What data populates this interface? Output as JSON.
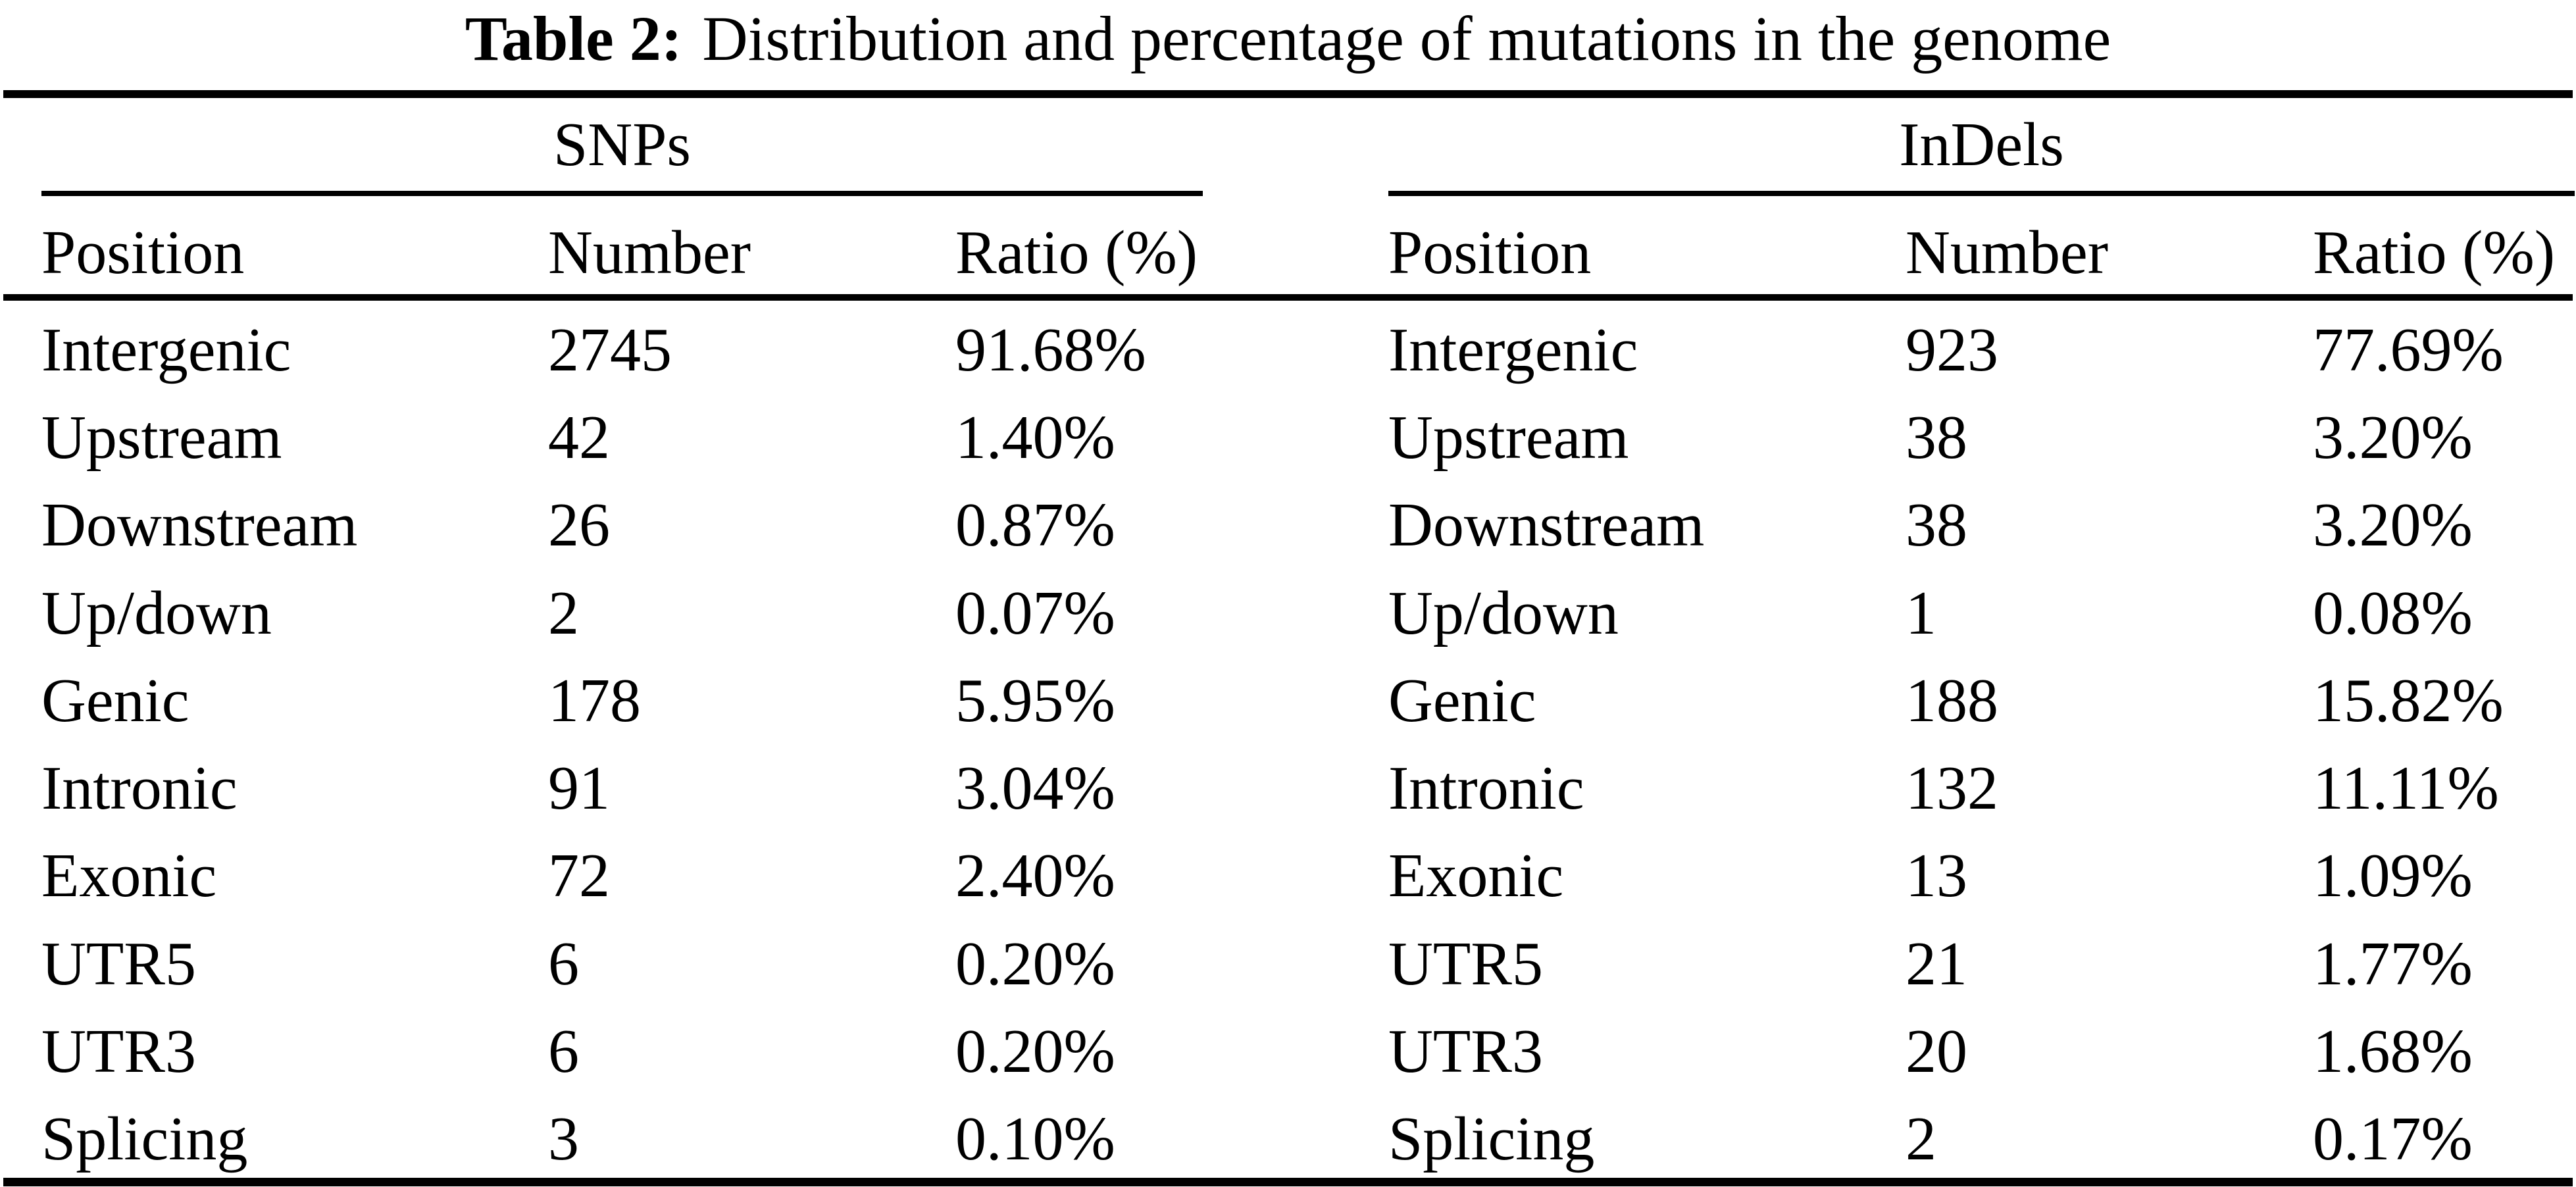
{
  "title": {
    "label": "Table 2:",
    "text": "Distribution and percentage of mutations in the genome"
  },
  "tables": {
    "snps": {
      "group_label": "SNPs",
      "columns": {
        "position": "Position",
        "number": "Number",
        "ratio": "Ratio (%)"
      },
      "rows": [
        {
          "position": "Intergenic",
          "number": "2745",
          "ratio": "91.68%"
        },
        {
          "position": "Upstream",
          "number": "42",
          "ratio": "1.40%"
        },
        {
          "position": "Downstream",
          "number": "26",
          "ratio": "0.87%"
        },
        {
          "position": "Up/down",
          "number": "2",
          "ratio": "0.07%"
        },
        {
          "position": "Genic",
          "number": "178",
          "ratio": "5.95%"
        },
        {
          "position": "Intronic",
          "number": "91",
          "ratio": "3.04%"
        },
        {
          "position": "Exonic",
          "number": "72",
          "ratio": "2.40%"
        },
        {
          "position": "UTR5",
          "number": "6",
          "ratio": "0.20%"
        },
        {
          "position": "UTR3",
          "number": "6",
          "ratio": "0.20%"
        },
        {
          "position": "Splicing",
          "number": "3",
          "ratio": "0.10%"
        }
      ]
    },
    "indels": {
      "group_label": "InDels",
      "columns": {
        "position": "Position",
        "number": "Number",
        "ratio": "Ratio (%)"
      },
      "rows": [
        {
          "position": "Intergenic",
          "number": "923",
          "ratio": "77.69%"
        },
        {
          "position": "Upstream",
          "number": "38",
          "ratio": "3.20%"
        },
        {
          "position": "Downstream",
          "number": "38",
          "ratio": "3.20%"
        },
        {
          "position": "Up/down",
          "number": "1",
          "ratio": "0.08%"
        },
        {
          "position": "Genic",
          "number": "188",
          "ratio": "15.82%"
        },
        {
          "position": "Intronic",
          "number": "132",
          "ratio": "11.11%"
        },
        {
          "position": "Exonic",
          "number": "13",
          "ratio": "1.09%"
        },
        {
          "position": "UTR5",
          "number": "21",
          "ratio": "1.77%"
        },
        {
          "position": "UTR3",
          "number": "20",
          "ratio": "1.68%"
        },
        {
          "position": "Splicing",
          "number": "2",
          "ratio": "0.17%"
        }
      ]
    }
  }
}
